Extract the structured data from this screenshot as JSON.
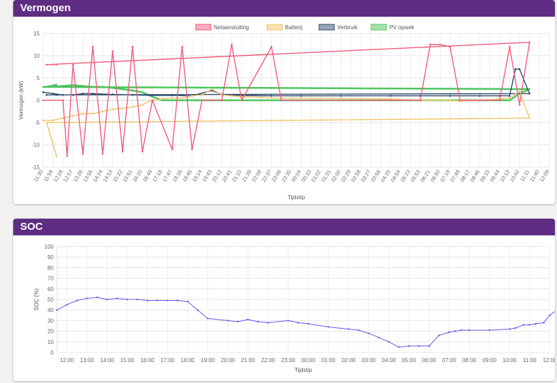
{
  "colors": {
    "header_bg": "#5e2d82",
    "netaansluiting": "#f25a7a",
    "batterij": "#f1c46a",
    "verbruik": "#2c4a6e",
    "pv_opwek": "#4cc65e",
    "soc_line": "#6a55ea"
  },
  "cards": [
    {
      "title": "Vermogen"
    },
    {
      "title": "SOC"
    }
  ],
  "chart_data": [
    {
      "type": "line",
      "title": "",
      "xlabel": "Tijdstip",
      "ylabel": "Vermogen (kW)",
      "ylim": [
        -15,
        15
      ],
      "yticks": [
        -15,
        -10,
        -5,
        0,
        5,
        10,
        15
      ],
      "grid": true,
      "legend_position": "top-center",
      "x_tick_labels": [
        "11:30",
        "11:59",
        "12:28",
        "12:57",
        "13:26",
        "13:55",
        "14:24",
        "14:53",
        "15:22",
        "15:51",
        "16:20",
        "16:49",
        "17:18",
        "17:47",
        "18:16",
        "18:45",
        "19:14",
        "19:43",
        "20:12",
        "20:41",
        "21:10",
        "21:39",
        "22:08",
        "22:37",
        "23:06",
        "23:35",
        "00:04",
        "00:33",
        "01:02",
        "01:31",
        "02:00",
        "02:29",
        "02:58",
        "03:27",
        "03:56",
        "04:25",
        "04:54",
        "05:23",
        "05:52",
        "06:21",
        "06:50",
        "07:19",
        "07:48",
        "08:17",
        "08:46",
        "09:15",
        "09:44",
        "10:13",
        "10:42",
        "11:11",
        "11:40",
        "12:09"
      ],
      "series": [
        {
          "name": "Netaansluiting",
          "color": "#f25a7a",
          "x": [
            "11:30",
            "12:28",
            "12:40",
            "12:57",
            "13:26",
            "13:55",
            "14:24",
            "14:53",
            "15:22",
            "15:51",
            "16:20",
            "16:49",
            "17:47",
            "18:16",
            "18:45",
            "19:14",
            "19:43",
            "20:12",
            "20:41",
            "21:10",
            "22:37",
            "23:06",
            "00:04",
            "02:00",
            "04:25",
            "05:52",
            "06:21",
            "06:50",
            "07:19",
            "07:48",
            "08:46",
            "09:44",
            "10:13",
            "10:42",
            "11:11",
            "11:40",
            "12:09"
          ],
          "values": [
            0,
            0,
            -12.5,
            8,
            -12,
            12,
            -12,
            11,
            -11.5,
            12,
            -11.5,
            0,
            -11,
            12,
            -11,
            0,
            0,
            0,
            12.5,
            0,
            12,
            0,
            0,
            0,
            0,
            0,
            12.5,
            12.5,
            12,
            0,
            0,
            0,
            12,
            -1,
            13,
            8,
            8
          ]
        },
        {
          "name": "Batterij",
          "color": "#f1c46a",
          "x": [
            "11:30",
            "11:59",
            "12:28",
            "12:57",
            "13:26",
            "13:55",
            "14:24",
            "14:53",
            "15:22",
            "15:51",
            "16:20",
            "16:49",
            "17:18",
            "17:47",
            "18:16",
            "18:45",
            "19:14",
            "19:43",
            "20:12",
            "20:41",
            "21:10",
            "22:08",
            "22:37",
            "23:06",
            "00:04",
            "02:00",
            "04:25",
            "05:52",
            "06:21",
            "07:19",
            "07:48",
            "08:46",
            "09:44",
            "10:13",
            "10:42",
            "11:11",
            "11:40",
            "12:09"
          ],
          "values": [
            -4.5,
            -4.5,
            -4,
            -3.5,
            -3,
            -3,
            -2.5,
            -2,
            -1.8,
            -1.5,
            -1,
            0,
            0.3,
            0.5,
            0.5,
            1,
            1.2,
            2.5,
            1.2,
            1,
            0.8,
            0.7,
            0.5,
            0.5,
            0.5,
            0.4,
            0.3,
            0,
            0,
            0,
            -0.2,
            0,
            0.3,
            0.5,
            2,
            -4,
            -5,
            -12.5
          ]
        },
        {
          "name": "Verbruik",
          "color": "#2c4a6e",
          "x": [
            "11:30",
            "11:59",
            "12:28",
            "12:57",
            "13:26",
            "13:55",
            "14:53",
            "15:51",
            "16:49",
            "17:47",
            "18:45",
            "19:43",
            "20:12",
            "21:10",
            "22:37",
            "00:04",
            "02:00",
            "04:25",
            "05:52",
            "07:19",
            "08:46",
            "09:44",
            "10:13",
            "10:30",
            "10:42",
            "11:11",
            "11:40",
            "12:09"
          ],
          "values": [
            1.8,
            1.5,
            1.2,
            1.2,
            1.5,
            1.5,
            1.3,
            1.2,
            1.1,
            1.1,
            1,
            2.2,
            1.3,
            1.1,
            1,
            1,
            1,
            1,
            1,
            1,
            1,
            1,
            1,
            7,
            7,
            1.5,
            1.2,
            1.2
          ]
        },
        {
          "name": "PV opwek",
          "color": "#4cc65e",
          "x": [
            "11:30",
            "11:59",
            "12:28",
            "12:57",
            "13:26",
            "13:55",
            "14:24",
            "14:53",
            "15:22",
            "15:51",
            "16:20",
            "16:49",
            "17:18",
            "10:13",
            "10:42",
            "11:11",
            "11:40",
            "12:09"
          ],
          "values": [
            3,
            3,
            3.2,
            3.4,
            3.2,
            3,
            3,
            2.8,
            2.5,
            2.2,
            1.8,
            0.8,
            0,
            0,
            1.5,
            2.5,
            3,
            3.5
          ]
        }
      ]
    },
    {
      "type": "line",
      "title": "",
      "xlabel": "Tijdstip",
      "ylabel": "SOC (%)",
      "ylim": [
        0,
        100
      ],
      "yticks": [
        0,
        10,
        20,
        30,
        40,
        50,
        60,
        70,
        80,
        90,
        100
      ],
      "grid": true,
      "x_tick_labels": [
        "12:00",
        "13:00",
        "14:00",
        "15:00",
        "16:00",
        "17:00",
        "18:00",
        "19:00",
        "20:00",
        "21:00",
        "22:00",
        "23:00",
        "00:00",
        "01:00",
        "02:00",
        "03:00",
        "04:00",
        "05:00",
        "06:00",
        "07:00",
        "08:00",
        "09:00",
        "10:00",
        "11:00",
        "12:00"
      ],
      "series": [
        {
          "name": "SOC",
          "color": "#6a55ea",
          "x": [
            11.5,
            12.0,
            12.5,
            13.0,
            13.5,
            14.0,
            14.5,
            15.0,
            15.5,
            16.0,
            16.5,
            17.0,
            17.5,
            18.0,
            18.5,
            19.0,
            20.0,
            20.5,
            21.0,
            21.5,
            22.0,
            23.0,
            23.5,
            24.0,
            25.0,
            26.0,
            26.5,
            27.0,
            27.5,
            28.0,
            28.5,
            29.0,
            29.5,
            30.0,
            30.5,
            31.0,
            31.3,
            31.6,
            32.0,
            33.0,
            34.0,
            34.3,
            34.7,
            35.0,
            35.3,
            35.7,
            36.0,
            36.5,
            36.8
          ],
          "values": [
            40,
            45,
            49,
            51,
            52,
            50,
            51,
            50,
            50,
            49,
            49,
            49,
            49,
            48,
            40,
            32,
            30,
            29,
            31,
            29,
            28,
            30,
            28,
            27,
            24,
            22,
            21,
            18,
            14,
            10,
            5,
            6,
            6,
            6,
            16,
            19,
            20,
            21,
            21,
            21,
            22,
            23,
            26,
            26,
            27,
            28,
            35,
            42,
            49
          ]
        }
      ]
    }
  ]
}
